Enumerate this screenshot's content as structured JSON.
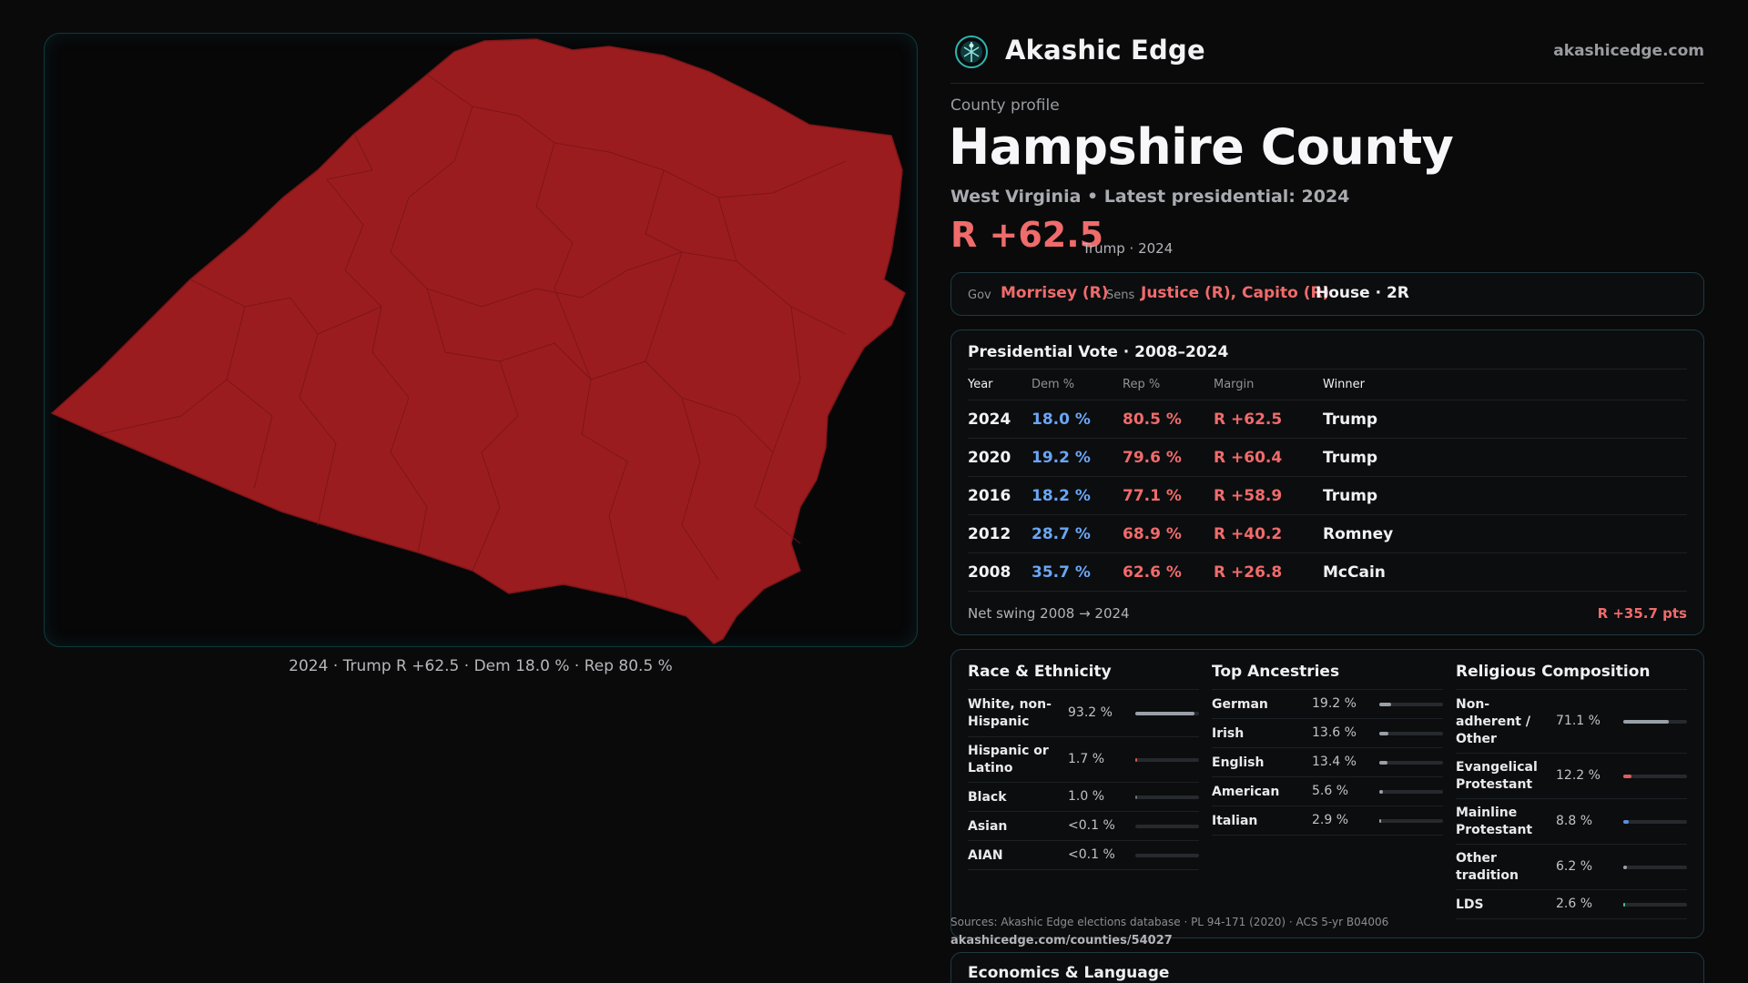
{
  "brand": {
    "name": "Akashic Edge",
    "url": "akashicedge.com"
  },
  "profile": {
    "eyebrow": "County profile",
    "county": "Hampshire County",
    "subtitle": "West Virginia • Latest presidential: 2024",
    "margin": "R +62.5",
    "margin_note": "Trump · 2024"
  },
  "officials": {
    "gov_label": "Gov",
    "gov": "Morrisey (R)",
    "sens_label": "Sens",
    "sens": "Justice (R), Capito (R)",
    "house": "House · 2R"
  },
  "map": {
    "caption": "2024 · Trump R +62.5 · Dem 18.0 % · Rep 80.5 %",
    "fill_color": "#9b1c1f"
  },
  "presidential": {
    "title": "Presidential Vote · 2008–2024",
    "headers": [
      "Year",
      "Dem %",
      "Rep %",
      "Margin",
      "Winner"
    ],
    "rows": [
      [
        "2024",
        "18.0 %",
        "80.5 %",
        "R +62.5",
        "Trump"
      ],
      [
        "2020",
        "19.2 %",
        "79.6 %",
        "R +60.4",
        "Trump"
      ],
      [
        "2016",
        "18.2 %",
        "77.1 %",
        "R +58.9",
        "Trump"
      ],
      [
        "2012",
        "28.7 %",
        "68.9 %",
        "R +40.2",
        "Romney"
      ],
      [
        "2008",
        "35.7 %",
        "62.6 %",
        "R +26.8",
        "McCain"
      ]
    ],
    "swing_label": "Net swing 2008 → 2024",
    "swing_value": "R +35.7 pts"
  },
  "race": {
    "title": "Race & Ethnicity",
    "items": [
      {
        "label": "White, non-Hispanic",
        "pct": "93.2 %",
        "value": 0.932,
        "color": "#9aa0a8"
      },
      {
        "label": "Hispanic or Latino",
        "pct": "1.7 %",
        "value": 0.017,
        "color": "#d25a4a"
      },
      {
        "label": "Black",
        "pct": "1.0 %",
        "value": 0.01,
        "color": "#6b6f75"
      },
      {
        "label": "Asian",
        "pct": "<0.1 %",
        "value": 0.0,
        "color": "#6b6f75"
      },
      {
        "label": "AIAN",
        "pct": "<0.1 %",
        "value": 0.0,
        "color": "#6b6f75"
      }
    ]
  },
  "ancestry": {
    "title": "Top Ancestries",
    "items": [
      {
        "label": "German",
        "pct": "19.2 %",
        "value": 0.192,
        "color": "#9aa0a8"
      },
      {
        "label": "Irish",
        "pct": "13.6 %",
        "value": 0.136,
        "color": "#9aa0a8"
      },
      {
        "label": "English",
        "pct": "13.4 %",
        "value": 0.134,
        "color": "#9aa0a8"
      },
      {
        "label": "American",
        "pct": "5.6 %",
        "value": 0.056,
        "color": "#9aa0a8"
      },
      {
        "label": "Italian",
        "pct": "2.9 %",
        "value": 0.029,
        "color": "#9aa0a8"
      }
    ]
  },
  "religion": {
    "title": "Religious Composition",
    "items": [
      {
        "label": "Non-adherent / Other",
        "pct": "71.1 %",
        "value": 0.711,
        "color": "#9aa0a8"
      },
      {
        "label": "Evangelical Protestant",
        "pct": "12.2 %",
        "value": 0.122,
        "color": "#e05c5c"
      },
      {
        "label": "Mainline Protestant",
        "pct": "8.8 %",
        "value": 0.088,
        "color": "#5a8fe0"
      },
      {
        "label": "Other tradition",
        "pct": "6.2 %",
        "value": 0.062,
        "color": "#9aa0a8"
      },
      {
        "label": "LDS",
        "pct": "2.6 %",
        "value": 0.026,
        "color": "#3fbfa8"
      }
    ]
  },
  "sources": {
    "text": "Sources: Akashic Edge elections database · PL 94-171 (2020) · ACS 5-yr B04006",
    "url": "akashicedge.com/counties/54027"
  },
  "econ": {
    "title": "Economics & Language"
  }
}
